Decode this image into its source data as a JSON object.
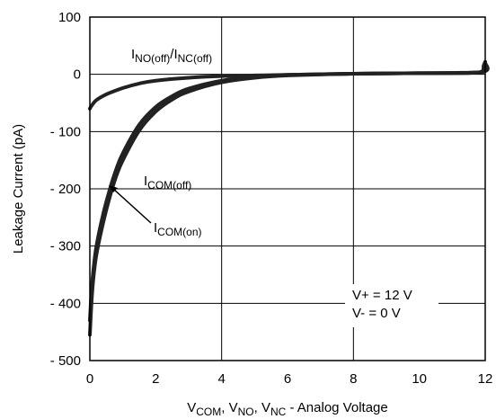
{
  "chart_data": {
    "type": "line",
    "xlabel": {
      "parts": [
        "V",
        "COM",
        ", V",
        "NO",
        ", V",
        "NC",
        " -  Analog  Voltage"
      ]
    },
    "ylabel": "Leakage Current (pA)",
    "xlim": [
      0,
      12
    ],
    "ylim": [
      -500,
      100
    ],
    "x_ticks": [
      0,
      2,
      4,
      6,
      8,
      10,
      12
    ],
    "x_tick_labels": [
      "0",
      "2",
      "4",
      "6",
      "8",
      "10",
      "12"
    ],
    "y_ticks": [
      100,
      0,
      -100,
      -200,
      -300,
      -400,
      -500
    ],
    "y_tick_labels": [
      "100",
      "0",
      "- 100",
      "- 200",
      "- 300",
      "- 400",
      "- 500"
    ],
    "grid": true,
    "colors": {
      "line": "#222222",
      "grid": "#000000"
    },
    "series": [
      {
        "name": "I_NO(off)/I_NC(off)",
        "x": [
          0.0,
          0.05,
          0.2,
          0.5,
          1.0,
          1.5,
          2.0,
          3.0,
          4.0,
          5.0,
          6.0,
          8.0,
          10.0,
          11.5,
          11.9,
          11.95,
          12.0
        ],
        "y": [
          -60,
          -55,
          -45,
          -35,
          -24,
          -16,
          -11,
          -6,
          -3,
          -2,
          -1,
          1,
          2,
          3,
          5,
          15,
          22
        ]
      },
      {
        "name": "I_COM(off)",
        "x": [
          0.0,
          0.05,
          0.1,
          0.2,
          0.4,
          0.6,
          0.8,
          1.0,
          1.5,
          2.0,
          2.5,
          3.0,
          4.0,
          5.0,
          6.0,
          8.0,
          10.0,
          11.9,
          12.0
        ],
        "y": [
          -455,
          -400,
          -360,
          -315,
          -260,
          -215,
          -178,
          -150,
          -98,
          -65,
          -44,
          -30,
          -14,
          -6,
          -2,
          1,
          2,
          4,
          20
        ]
      },
      {
        "name": "I_COM(on)",
        "x": [
          0.0,
          0.05,
          0.1,
          0.2,
          0.4,
          0.6,
          0.8,
          1.0,
          1.5,
          2.0,
          2.5,
          3.0,
          4.0,
          5.0,
          6.0,
          8.0,
          10.0,
          11.9,
          12.0
        ],
        "y": [
          -430,
          -380,
          -345,
          -300,
          -245,
          -202,
          -166,
          -138,
          -88,
          -57,
          -38,
          -25,
          -11,
          -4,
          -1,
          1,
          2,
          4,
          20
        ]
      }
    ],
    "annotations": {
      "nooff": {
        "parts": [
          "I",
          "NO(off)",
          "/I",
          "NC(off)"
        ]
      },
      "comoff": {
        "parts": [
          "I",
          "COM(off)"
        ]
      },
      "comon": {
        "parts": [
          "I",
          "COM(on)"
        ]
      },
      "conditions": [
        "V+ = 12 V",
        "V- = 0 V"
      ]
    }
  }
}
